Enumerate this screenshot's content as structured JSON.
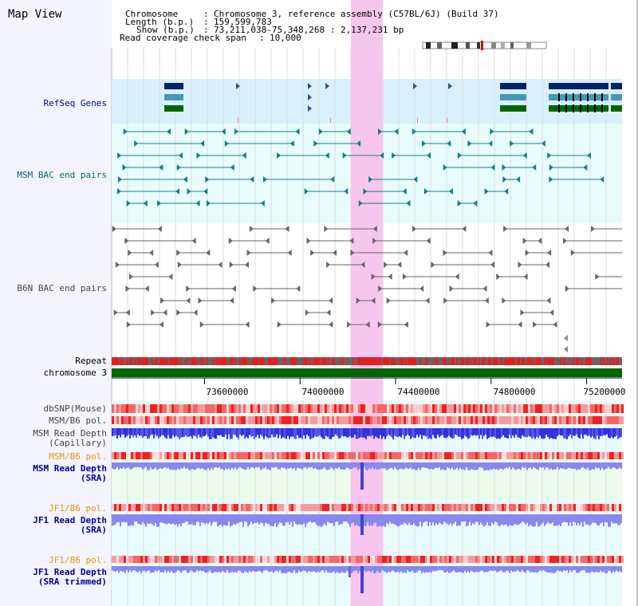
{
  "title": "Map View",
  "info": {
    "chromosome_label": "Chromosome",
    "chromosome_value": "Chromosome 3, reference assembly (C57BL/6J) (Build 37)",
    "length_label": "Length (b.p.)",
    "length_value": "159,599,783",
    "show_label": "Show (b.p.)",
    "show_value": "73,211,038-75,348,268 : 2,137,231 bp",
    "coverage_label": "Read coverage check span",
    "coverage_value": "10,000"
  },
  "tracks": {
    "refseq": "RefSeq Genes",
    "msm_bac": "MSM BAC end pairs",
    "b6n_bac": "B6N BAC end pairs",
    "repeat": "Repeat",
    "chromosome": "chromosome 3",
    "dbsnp": "dbSNP(Mouse)",
    "msm_b6_pol": "MSM/B6 pol.",
    "msm_depth_cap_1": "MSM Read Depth",
    "msm_depth_cap_2": "(Capillary)",
    "msm_b6_pol2": "MSM/B6 pol.",
    "msm_depth_sra_1": "MSM Read Depth",
    "msm_depth_sra_2": "(SRA)",
    "jf1_b6_pol": "JF1/B6 pol.",
    "jf1_depth_sra_1": "JF1 Read Depth",
    "jf1_depth_sra_2": "(SRA)",
    "jf1_b6_pol2": "JF1/B6 pol.",
    "jf1_depth_trim_1": "JF1 Read Depth",
    "jf1_depth_trim_2": "(SRA trimmed)"
  },
  "axis": {
    "ticks": [
      "73600000",
      "74000000",
      "74400000",
      "74800000",
      "75200000"
    ],
    "tick_values": [
      73600000,
      74000000,
      74400000,
      74800000,
      75200000
    ],
    "range": [
      73211038,
      75348268
    ]
  },
  "colors": {
    "highlight": "#f7c6ee",
    "refseq_bg": "#d8f0fb",
    "msm_bg": "#e8fcfc",
    "depth_blue": "#3333dd",
    "depth_light": "#8888ee",
    "chromosome": "#006600",
    "repeat_red": "#dd2222"
  }
}
